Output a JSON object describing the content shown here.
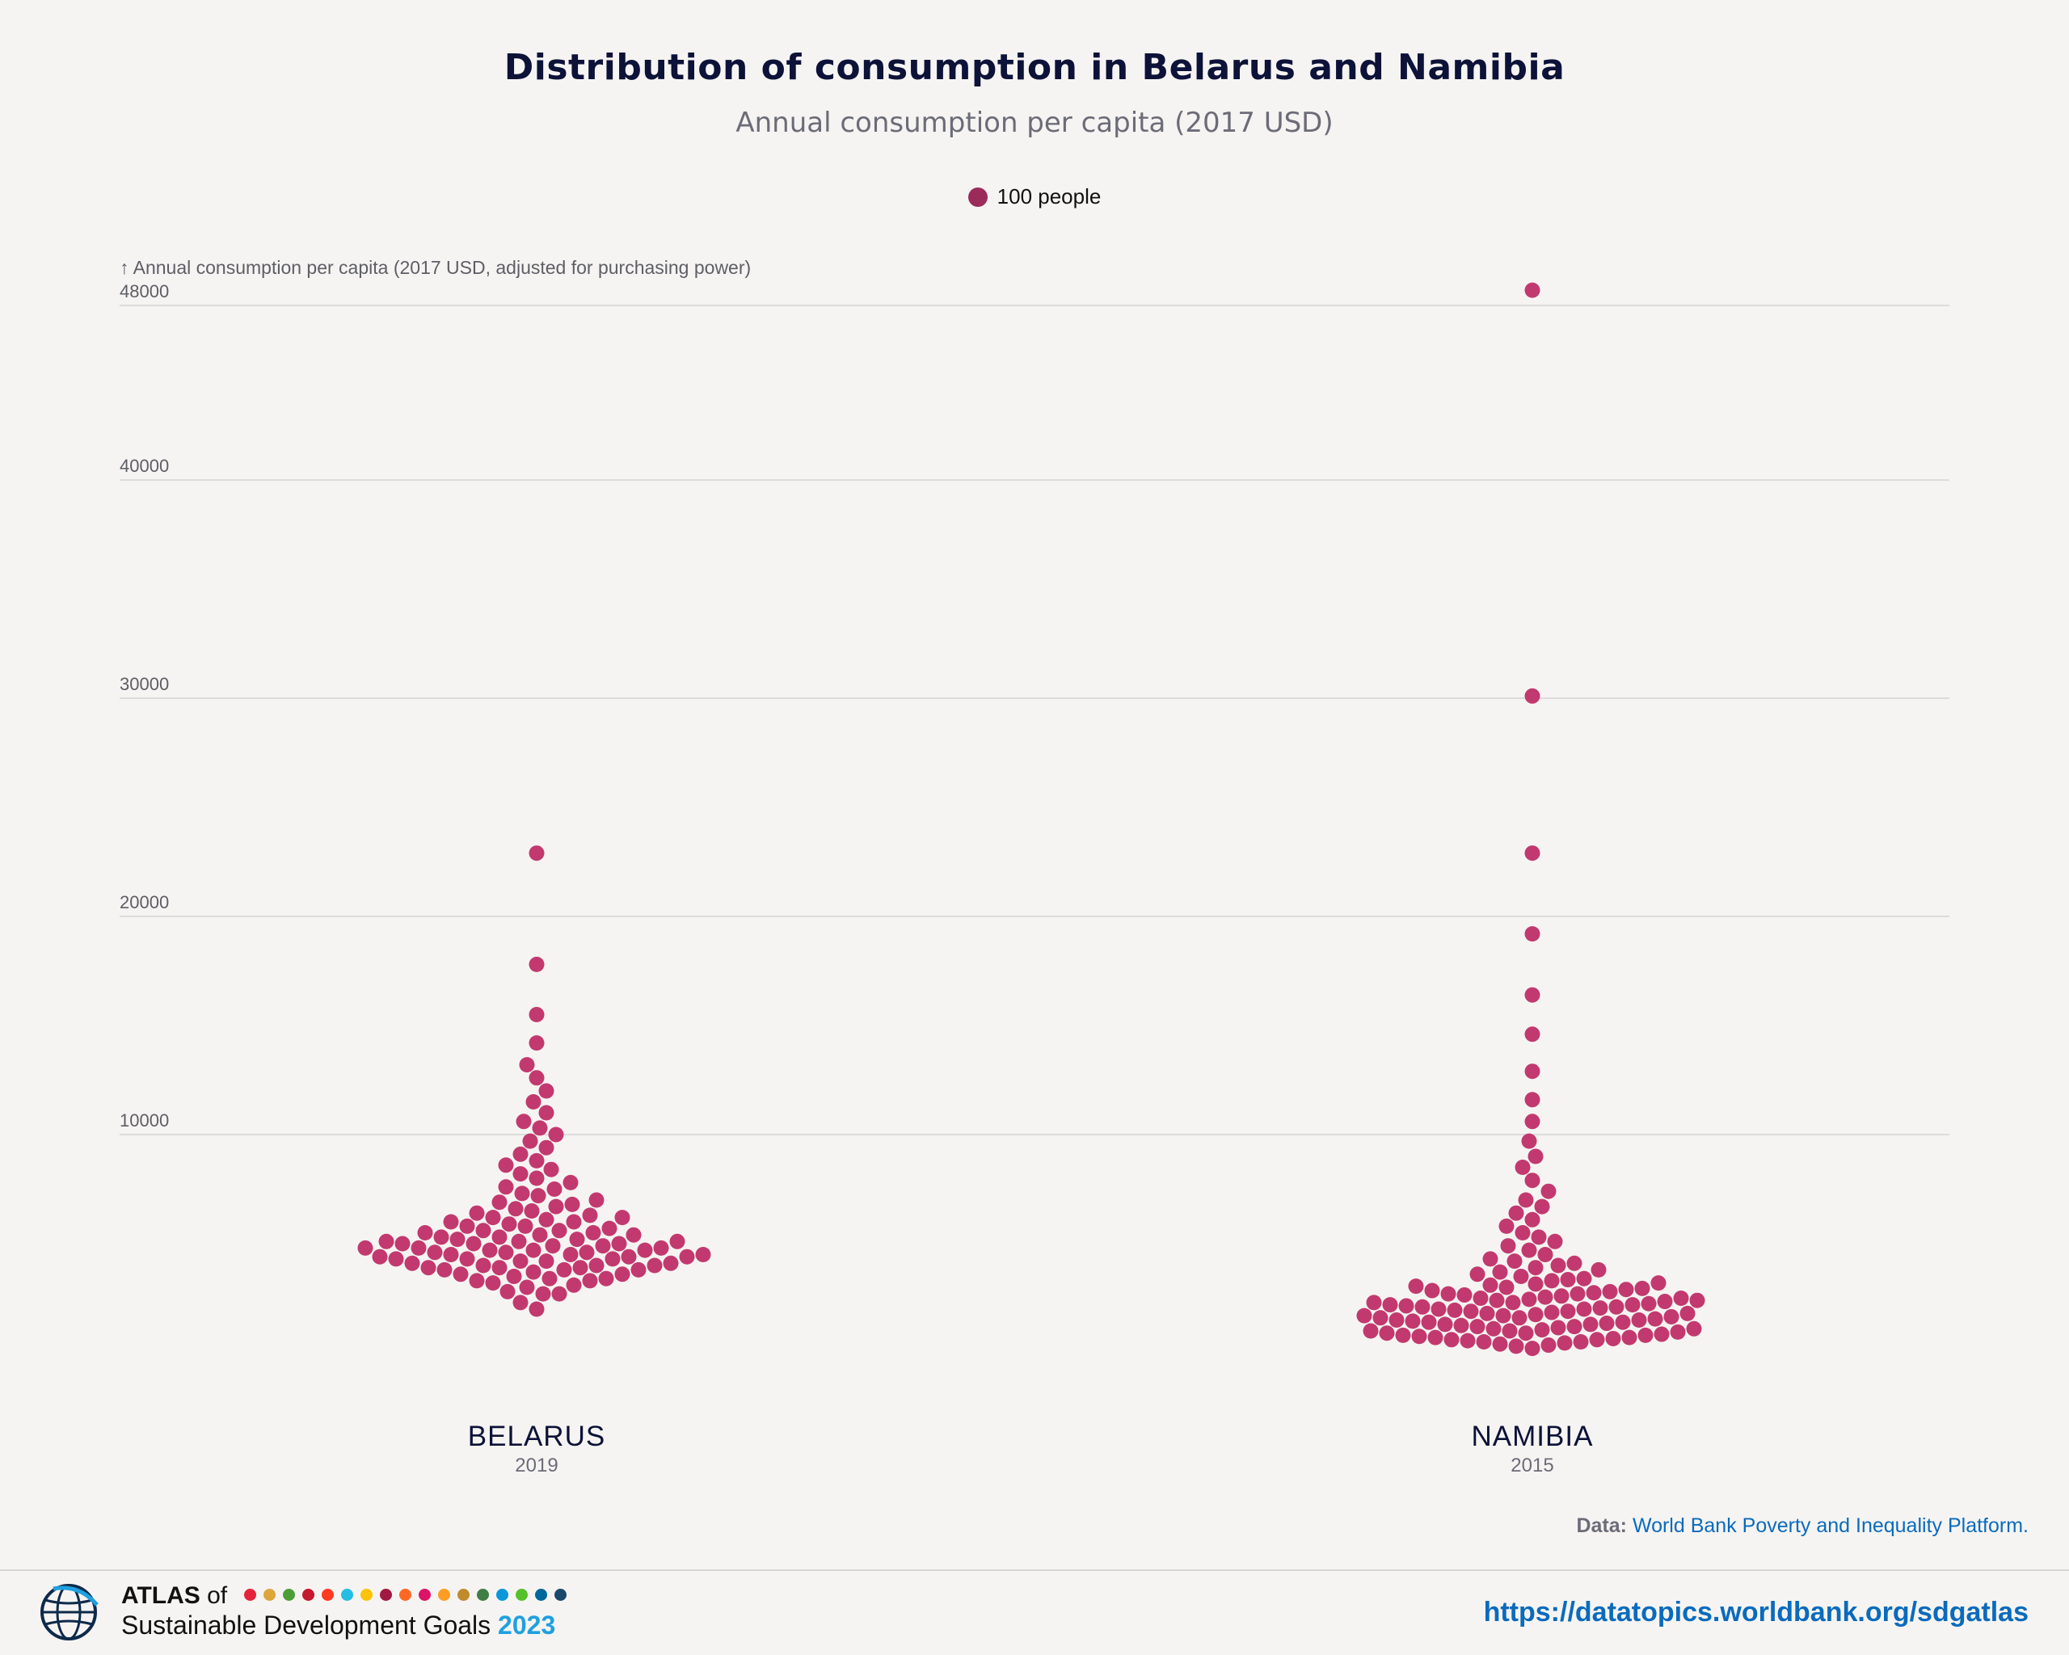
{
  "header": {
    "title": "Distribution of consumption in Belarus and Namibia",
    "subtitle": "Annual consumption per capita (2017 USD)"
  },
  "legend": {
    "label": "100 people",
    "color": "#9b2c5a"
  },
  "chart_data": {
    "type": "scatter",
    "subtype": "beeswarm",
    "y_axis_title": "↑ Annual consumption per capita (2017 USD, adjusted for purchasing power)",
    "y_ticks": [
      10000,
      20000,
      30000,
      40000,
      48000
    ],
    "ylim": [
      0,
      48000
    ],
    "dot_color": "#c2396f",
    "dot_unit": "100 people",
    "series": [
      {
        "name": "BELARUS",
        "year": "2019",
        "values": [
          2000,
          2300,
          2700,
          2700,
          2800,
          3000,
          3100,
          3200,
          3300,
          3300,
          3400,
          3400,
          3500,
          3600,
          3600,
          3700,
          3800,
          3800,
          3800,
          3900,
          3900,
          3900,
          4000,
          4000,
          4000,
          4100,
          4100,
          4200,
          4200,
          4300,
          4300,
          4300,
          4400,
          4400,
          4400,
          4500,
          4500,
          4500,
          4600,
          4600,
          4600,
          4700,
          4700,
          4700,
          4800,
          4800,
          4800,
          4900,
          4900,
          5000,
          5000,
          5000,
          5100,
          5100,
          5100,
          5200,
          5200,
          5300,
          5300,
          5400,
          5400,
          5500,
          5500,
          5600,
          5600,
          5700,
          5800,
          5800,
          5900,
          6000,
          6000,
          6100,
          6200,
          6200,
          6300,
          6400,
          6500,
          6600,
          6700,
          6800,
          6900,
          7000,
          7200,
          7300,
          7500,
          7600,
          7800,
          8000,
          8200,
          8400,
          8600,
          8800,
          9100,
          9400,
          9700,
          10000,
          10300,
          10600,
          11000,
          11500,
          12000,
          12600,
          13200,
          14200,
          15500,
          17800,
          22900
        ]
      },
      {
        "name": "NAMIBIA",
        "year": "2015",
        "values": [
          200,
          300,
          350,
          400,
          450,
          500,
          500,
          550,
          600,
          600,
          650,
          700,
          700,
          750,
          800,
          800,
          850,
          900,
          900,
          950,
          1000,
          1000,
          1050,
          1100,
          1100,
          1150,
          1200,
          1200,
          1250,
          1300,
          1300,
          1350,
          1400,
          1400,
          1450,
          1500,
          1500,
          1550,
          1600,
          1600,
          1650,
          1700,
          1700,
          1750,
          1800,
          1800,
          1850,
          1900,
          1900,
          1950,
          2000,
          2000,
          2050,
          2100,
          2100,
          2150,
          2200,
          2200,
          2250,
          2300,
          2300,
          2350,
          2400,
          2400,
          2450,
          2500,
          2500,
          2550,
          2600,
          2650,
          2700,
          2700,
          2750,
          2800,
          2850,
          2900,
          2950,
          3000,
          3050,
          3100,
          3150,
          3200,
          3300,
          3350,
          3400,
          3500,
          3600,
          3700,
          3800,
          3900,
          4000,
          4100,
          4200,
          4300,
          4500,
          4700,
          4900,
          5100,
          5300,
          5500,
          5800,
          6100,
          6400,
          6700,
          7000,
          7400,
          7900,
          8500,
          9000,
          9700,
          10600,
          11600,
          12900,
          14600,
          16400,
          19200,
          22900,
          30100,
          48700
        ]
      }
    ]
  },
  "source": {
    "prefix": "Data:",
    "text": "World Bank Poverty and Inequality Platform."
  },
  "footer": {
    "atlas_bold": "ATLAS",
    "atlas_of": "of",
    "sdg_text": "Sustainable Development Goals",
    "sdg_year": "2023",
    "url": "https://datatopics.worldbank.org/sdgatlas",
    "sdg_colors": [
      "#e5243b",
      "#dda63a",
      "#4c9f38",
      "#c5192d",
      "#ff3a21",
      "#26bde2",
      "#fcc30b",
      "#a21942",
      "#fd6925",
      "#dd1367",
      "#fd9d24",
      "#bf8b2e",
      "#3f7e44",
      "#0a97d9",
      "#56c02b",
      "#00689d",
      "#19486a"
    ]
  }
}
